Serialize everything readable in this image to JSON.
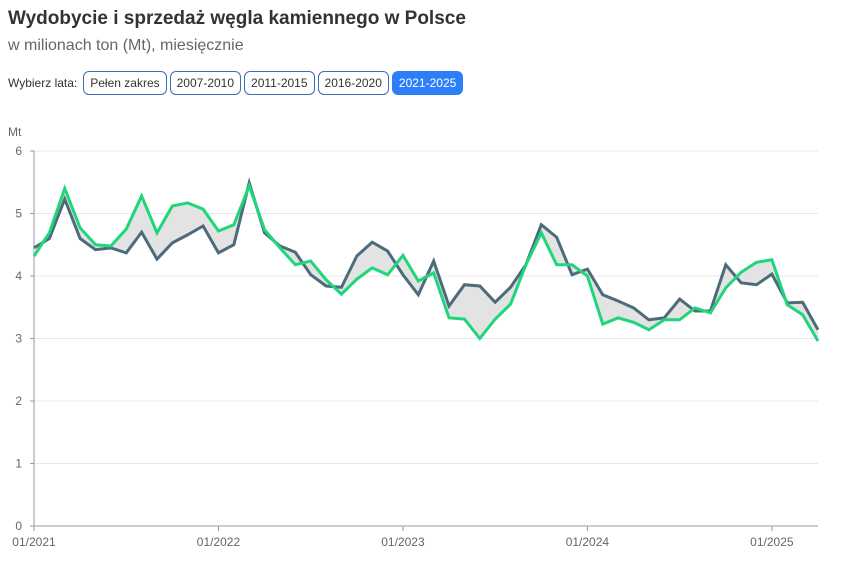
{
  "header": {
    "title": "Wydobycie i sprzedaż węgla kamiennego w Polsce",
    "subtitle": "w milionach ton (Mt), miesięcznie"
  },
  "controls": {
    "label": "Wybierz lata:",
    "buttons": [
      {
        "label": "Pełen zakres",
        "active": false
      },
      {
        "label": "2007-2010",
        "active": false
      },
      {
        "label": "2011-2015",
        "active": false
      },
      {
        "label": "2016-2020",
        "active": false
      },
      {
        "label": "2021-2025",
        "active": true
      }
    ]
  },
  "chart_data": {
    "type": "line",
    "title": "Wydobycie i sprzedaż węgla kamiennego w Polsce",
    "ylabel": "Mt",
    "ylim": [
      0,
      6
    ],
    "yticks": [
      "0",
      "1",
      "2",
      "3",
      "4",
      "5",
      "6"
    ],
    "x_start": "01/2021",
    "x_months": 52,
    "xticks": [
      {
        "label": "01/2021",
        "month": 0
      },
      {
        "label": "01/2022",
        "month": 12
      },
      {
        "label": "01/2023",
        "month": 24
      },
      {
        "label": "01/2024",
        "month": 36
      },
      {
        "label": "01/2025",
        "month": 48
      }
    ],
    "grid": true,
    "area_between_series": true,
    "series": [
      {
        "color": "#4d6b7a",
        "values": [
          4.45,
          4.6,
          5.23,
          4.6,
          4.42,
          4.45,
          4.37,
          4.7,
          4.27,
          4.53,
          4.66,
          4.8,
          4.37,
          4.5,
          5.49,
          4.69,
          4.48,
          4.38,
          4.02,
          3.84,
          3.82,
          4.32,
          4.54,
          4.4,
          4.02,
          3.7,
          4.24,
          3.52,
          3.86,
          3.84,
          3.58,
          3.82,
          4.18,
          4.82,
          4.62,
          4.02,
          4.11,
          3.7,
          3.6,
          3.49,
          3.3,
          3.33,
          3.63,
          3.44,
          3.44,
          4.18,
          3.89,
          3.86,
          4.03,
          3.57,
          3.58,
          3.14
        ]
      },
      {
        "color": "#1fd67a",
        "values": [
          4.32,
          4.69,
          5.4,
          4.77,
          4.5,
          4.48,
          4.75,
          5.28,
          4.69,
          5.12,
          5.17,
          5.07,
          4.72,
          4.82,
          5.44,
          4.74,
          4.45,
          4.18,
          4.24,
          3.94,
          3.71,
          3.95,
          4.13,
          4.02,
          4.33,
          3.92,
          4.05,
          3.33,
          3.31,
          3.0,
          3.31,
          3.55,
          4.18,
          4.69,
          4.18,
          4.18,
          4.0,
          3.23,
          3.33,
          3.26,
          3.14,
          3.3,
          3.3,
          3.49,
          3.41,
          3.81,
          4.06,
          4.22,
          4.26,
          3.54,
          3.38,
          2.96
        ]
      }
    ]
  }
}
